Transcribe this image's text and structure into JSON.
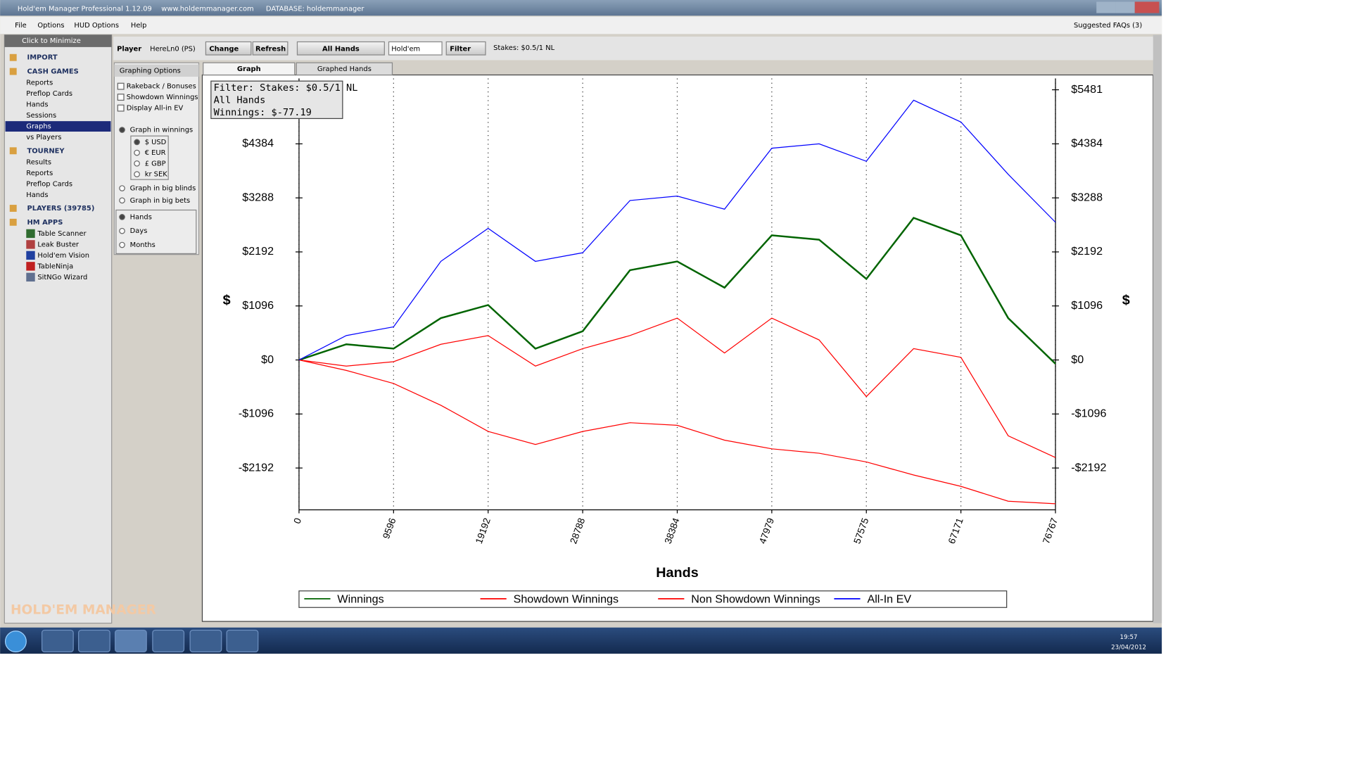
{
  "window": {
    "title": "Hold'em Manager Professional 1.12.09",
    "url": "www.holdemmanager.com",
    "database": "DATABASE: holdemmanager"
  },
  "menu": [
    "File",
    "Options",
    "HUD Options",
    "Help"
  ],
  "faqs": "Suggested FAQs (3)",
  "sidebar": {
    "minimize": "Click to Minimize",
    "import": "IMPORT",
    "cash_games": {
      "title": "CASH GAMES",
      "items": [
        "Reports",
        "Preflop Cards",
        "Hands",
        "Sessions",
        "Graphs",
        "vs Players"
      ]
    },
    "tourney": {
      "title": "TOURNEY",
      "items": [
        "Results",
        "Reports",
        "Preflop Cards",
        "Hands"
      ]
    },
    "players": "PLAYERS (39785)",
    "hm_apps": {
      "title": "HM APPS",
      "items": [
        "Table Scanner",
        "Leak Buster",
        "Hold'em Vision",
        "TableNinja",
        "SitNGo Wizard"
      ]
    },
    "logo": "HOLD'EM MANAGER"
  },
  "toolbar": {
    "player_label": "Player",
    "player": "HereLn0 (PS)",
    "change": "Change",
    "refresh": "Refresh",
    "all_hands": "All Hands",
    "game": "Hold'em",
    "filter": "Filter",
    "stakes": "Stakes: $0.5/1 NL"
  },
  "options": {
    "title": "Graphing Options",
    "checks": [
      "Rakeback / Bonuses",
      "Showdown Winnings",
      "Display All-in EV"
    ],
    "winnings": "Graph in winnings",
    "currencies": [
      "$ USD",
      "€ EUR",
      "£ GBP",
      "kr SEK"
    ],
    "units": [
      "Graph in big blinds",
      "Graph in big bets"
    ],
    "periods": [
      "Hands",
      "Days",
      "Months"
    ]
  },
  "tabs": [
    "Graph",
    "Graphed Hands"
  ],
  "chart_data": {
    "type": "line",
    "filter": [
      "Filter: Stakes: $0.5/1 NL",
      "All Hands",
      "Winnings: $-77.19"
    ],
    "xlabel": "Hands",
    "ylabel": "$",
    "x": [
      0,
      4798,
      9596,
      14394,
      19192,
      23990,
      28788,
      33586,
      38384,
      43182,
      47979,
      52777,
      57575,
      62373,
      67171,
      71969,
      76767
    ],
    "series": [
      {
        "name": "Winnings",
        "color": "#006400",
        "values": [
          0,
          318,
          230,
          849,
          1114,
          230,
          583,
          1821,
          1998,
          1467,
          2528,
          2440,
          1644,
          2882,
          2528,
          849,
          -77.19
        ]
      },
      {
        "name": "Showdown Winnings",
        "color": "#ff0000",
        "values": [
          0,
          -124,
          -35,
          318,
          495,
          -124,
          230,
          495,
          849,
          141,
          849,
          407,
          -743,
          230,
          53,
          -1538,
          -1980
        ]
      },
      {
        "name": "Non Showdown Winnings",
        "color": "#ff0000",
        "values": [
          0,
          -212,
          -477,
          -919,
          -1450,
          -1715,
          -1450,
          -1273,
          -1326,
          -1627,
          -1803,
          -1892,
          -2069,
          -2334,
          -2564,
          -2865,
          -2918
        ]
      },
      {
        "name": "All-In EV",
        "color": "#0000ff",
        "values": [
          0,
          495,
          672,
          2000,
          2670,
          2000,
          2175,
          3235,
          3324,
          3059,
          4296,
          4384,
          4031,
          5269,
          4827,
          3766,
          2793
        ]
      }
    ],
    "xlim": [
      0,
      76767
    ],
    "xticks": [
      0,
      9596,
      19192,
      28788,
      38384,
      47979,
      57575,
      67171,
      76767
    ],
    "ylim": [
      -3041,
      5711
    ],
    "yticks": [
      {
        "value": -2192,
        "label": "-$2192"
      },
      {
        "value": -1096,
        "label": "-$1096"
      },
      {
        "value": 0,
        "label": "$0"
      },
      {
        "value": 1096,
        "label": "$1096"
      },
      {
        "value": 2192,
        "label": "$2192"
      },
      {
        "value": 3288,
        "label": "$3288"
      },
      {
        "value": 4384,
        "label": "$4384"
      },
      {
        "value": 5481,
        "label": "$5481"
      }
    ],
    "grid": true
  },
  "taskbar": {
    "time": "19:57",
    "date": "23/04/2012"
  }
}
